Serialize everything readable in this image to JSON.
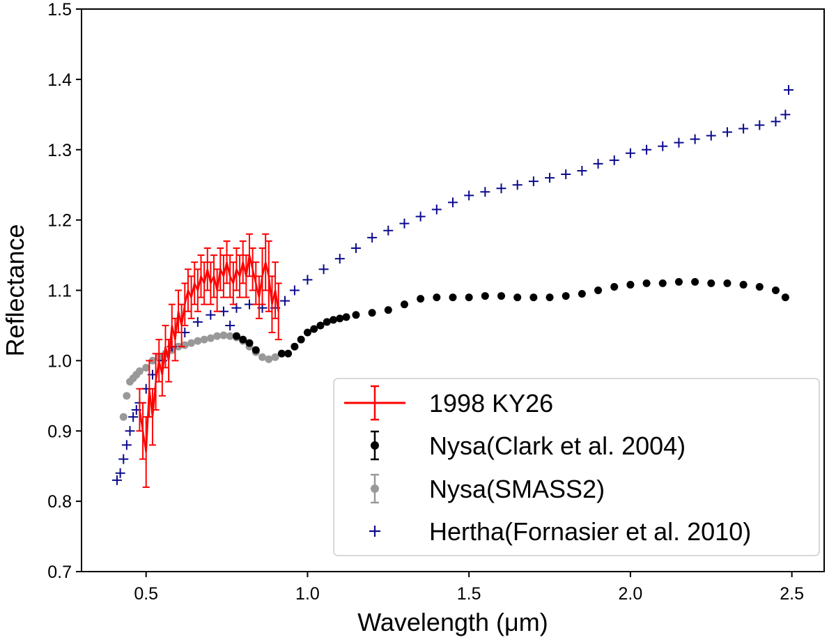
{
  "chart_data": {
    "type": "scatter",
    "title": "",
    "xlabel": "Wavelength (μm)",
    "ylabel": "Reflectance",
    "xlim": [
      0.3,
      2.6
    ],
    "ylim": [
      0.7,
      1.5
    ],
    "xticks": [
      0.5,
      1.0,
      1.5,
      2.0,
      2.5
    ],
    "xtick_labels": [
      "0.5",
      "1.0",
      "1.5",
      "2.0",
      "2.5"
    ],
    "yticks": [
      0.7,
      0.8,
      0.9,
      1.0,
      1.1,
      1.2,
      1.3,
      1.4,
      1.5
    ],
    "ytick_labels": [
      "0.7",
      "0.8",
      "0.9",
      "1.0",
      "1.1",
      "1.2",
      "1.3",
      "1.4",
      "1.5"
    ],
    "grid": false,
    "legend_position": "lower-right",
    "series": [
      {
        "name": "1998 KY26",
        "color": "#ff0000",
        "style": "line-errorbar",
        "points": [
          [
            0.48,
            0.93,
            0.03
          ],
          [
            0.49,
            0.9,
            0.04
          ],
          [
            0.5,
            0.87,
            0.05
          ],
          [
            0.51,
            0.96,
            0.04
          ],
          [
            0.52,
            0.92,
            0.04
          ],
          [
            0.53,
            0.97,
            0.04
          ],
          [
            0.54,
            1.0,
            0.03
          ],
          [
            0.55,
            0.98,
            0.03
          ],
          [
            0.56,
            1.02,
            0.03
          ],
          [
            0.57,
            1.0,
            0.03
          ],
          [
            0.58,
            1.05,
            0.03
          ],
          [
            0.59,
            1.03,
            0.03
          ],
          [
            0.6,
            1.07,
            0.03
          ],
          [
            0.61,
            1.05,
            0.03
          ],
          [
            0.62,
            1.08,
            0.03
          ],
          [
            0.63,
            1.1,
            0.03
          ],
          [
            0.64,
            1.09,
            0.03
          ],
          [
            0.65,
            1.11,
            0.03
          ],
          [
            0.66,
            1.1,
            0.03
          ],
          [
            0.67,
            1.12,
            0.03
          ],
          [
            0.68,
            1.11,
            0.03
          ],
          [
            0.69,
            1.13,
            0.03
          ],
          [
            0.7,
            1.11,
            0.03
          ],
          [
            0.71,
            1.12,
            0.03
          ],
          [
            0.72,
            1.1,
            0.03
          ],
          [
            0.73,
            1.13,
            0.03
          ],
          [
            0.74,
            1.12,
            0.03
          ],
          [
            0.75,
            1.14,
            0.03
          ],
          [
            0.76,
            1.12,
            0.03
          ],
          [
            0.77,
            1.11,
            0.03
          ],
          [
            0.78,
            1.13,
            0.03
          ],
          [
            0.79,
            1.12,
            0.03
          ],
          [
            0.8,
            1.14,
            0.03
          ],
          [
            0.81,
            1.12,
            0.03
          ],
          [
            0.82,
            1.15,
            0.03
          ],
          [
            0.83,
            1.13,
            0.03
          ],
          [
            0.84,
            1.11,
            0.03
          ],
          [
            0.85,
            1.09,
            0.03
          ],
          [
            0.86,
            1.12,
            0.04
          ],
          [
            0.87,
            1.14,
            0.04
          ],
          [
            0.88,
            1.12,
            0.05
          ],
          [
            0.89,
            1.08,
            0.04
          ],
          [
            0.9,
            1.1,
            0.04
          ],
          [
            0.91,
            1.07,
            0.04
          ]
        ]
      },
      {
        "name": "Nysa(Clark et al. 2004)",
        "color": "#000000",
        "style": "marker-errorbar",
        "points": [
          [
            0.78,
            1.035
          ],
          [
            0.8,
            1.03
          ],
          [
            0.82,
            1.025
          ],
          [
            0.84,
            1.015
          ],
          [
            0.92,
            1.01
          ],
          [
            0.94,
            1.01
          ],
          [
            0.96,
            1.02
          ],
          [
            0.98,
            1.03
          ],
          [
            1.0,
            1.04
          ],
          [
            1.02,
            1.045
          ],
          [
            1.04,
            1.05
          ],
          [
            1.06,
            1.055
          ],
          [
            1.08,
            1.058
          ],
          [
            1.1,
            1.06
          ],
          [
            1.12,
            1.062
          ],
          [
            1.15,
            1.065
          ],
          [
            1.2,
            1.068
          ],
          [
            1.25,
            1.072
          ],
          [
            1.3,
            1.08
          ],
          [
            1.35,
            1.088
          ],
          [
            1.4,
            1.09
          ],
          [
            1.45,
            1.09
          ],
          [
            1.5,
            1.09
          ],
          [
            1.55,
            1.092
          ],
          [
            1.6,
            1.092
          ],
          [
            1.65,
            1.09
          ],
          [
            1.7,
            1.09
          ],
          [
            1.75,
            1.09
          ],
          [
            1.8,
            1.092
          ],
          [
            1.85,
            1.095
          ],
          [
            1.9,
            1.1
          ],
          [
            1.95,
            1.105
          ],
          [
            2.0,
            1.108
          ],
          [
            2.05,
            1.11
          ],
          [
            2.1,
            1.11
          ],
          [
            2.15,
            1.112
          ],
          [
            2.2,
            1.112
          ],
          [
            2.25,
            1.11
          ],
          [
            2.3,
            1.11
          ],
          [
            2.35,
            1.108
          ],
          [
            2.4,
            1.105
          ],
          [
            2.45,
            1.1
          ],
          [
            2.48,
            1.09
          ]
        ]
      },
      {
        "name": "Nysa(SMASS2)",
        "color": "#999999",
        "style": "marker-errorbar",
        "points": [
          [
            0.43,
            0.92
          ],
          [
            0.44,
            0.95
          ],
          [
            0.45,
            0.97
          ],
          [
            0.46,
            0.975
          ],
          [
            0.47,
            0.98
          ],
          [
            0.48,
            0.985
          ],
          [
            0.5,
            0.99
          ],
          [
            0.52,
            1.0
          ],
          [
            0.54,
            1.005
          ],
          [
            0.56,
            1.01
          ],
          [
            0.58,
            1.015
          ],
          [
            0.6,
            1.02
          ],
          [
            0.62,
            1.022
          ],
          [
            0.64,
            1.025
          ],
          [
            0.66,
            1.028
          ],
          [
            0.68,
            1.03
          ],
          [
            0.7,
            1.032
          ],
          [
            0.72,
            1.035
          ],
          [
            0.74,
            1.036
          ],
          [
            0.76,
            1.035
          ],
          [
            0.78,
            1.033
          ],
          [
            0.8,
            1.028
          ],
          [
            0.82,
            1.02
          ],
          [
            0.84,
            1.012
          ],
          [
            0.86,
            1.005
          ],
          [
            0.88,
            1.002
          ],
          [
            0.9,
            1.005
          ],
          [
            0.92,
            1.01
          ]
        ]
      },
      {
        "name": "Hertha(Fornasier et al. 2010)",
        "color": "#0a0a8c",
        "style": "plus",
        "points": [
          [
            0.41,
            0.83
          ],
          [
            0.42,
            0.84
          ],
          [
            0.43,
            0.86
          ],
          [
            0.44,
            0.88
          ],
          [
            0.45,
            0.9
          ],
          [
            0.46,
            0.92
          ],
          [
            0.47,
            0.93
          ],
          [
            0.48,
            0.94
          ],
          [
            0.5,
            0.96
          ],
          [
            0.52,
            0.98
          ],
          [
            0.55,
            1.0
          ],
          [
            0.58,
            1.02
          ],
          [
            0.62,
            1.04
          ],
          [
            0.66,
            1.055
          ],
          [
            0.7,
            1.065
          ],
          [
            0.74,
            1.07
          ],
          [
            0.76,
            1.05
          ],
          [
            0.78,
            1.075
          ],
          [
            0.82,
            1.08
          ],
          [
            0.86,
            1.075
          ],
          [
            0.9,
            1.075
          ],
          [
            0.93,
            1.085
          ],
          [
            0.96,
            1.1
          ],
          [
            1.0,
            1.115
          ],
          [
            1.05,
            1.13
          ],
          [
            1.1,
            1.145
          ],
          [
            1.15,
            1.16
          ],
          [
            1.2,
            1.175
          ],
          [
            1.25,
            1.185
          ],
          [
            1.3,
            1.195
          ],
          [
            1.35,
            1.205
          ],
          [
            1.4,
            1.215
          ],
          [
            1.45,
            1.225
          ],
          [
            1.5,
            1.235
          ],
          [
            1.55,
            1.24
          ],
          [
            1.6,
            1.245
          ],
          [
            1.65,
            1.25
          ],
          [
            1.7,
            1.255
          ],
          [
            1.75,
            1.26
          ],
          [
            1.8,
            1.265
          ],
          [
            1.85,
            1.27
          ],
          [
            1.9,
            1.28
          ],
          [
            1.95,
            1.285
          ],
          [
            2.0,
            1.295
          ],
          [
            2.05,
            1.3
          ],
          [
            2.1,
            1.305
          ],
          [
            2.15,
            1.31
          ],
          [
            2.2,
            1.315
          ],
          [
            2.25,
            1.32
          ],
          [
            2.3,
            1.325
          ],
          [
            2.35,
            1.33
          ],
          [
            2.4,
            1.335
          ],
          [
            2.45,
            1.34
          ],
          [
            2.48,
            1.35
          ],
          [
            2.49,
            1.385
          ]
        ]
      }
    ]
  }
}
